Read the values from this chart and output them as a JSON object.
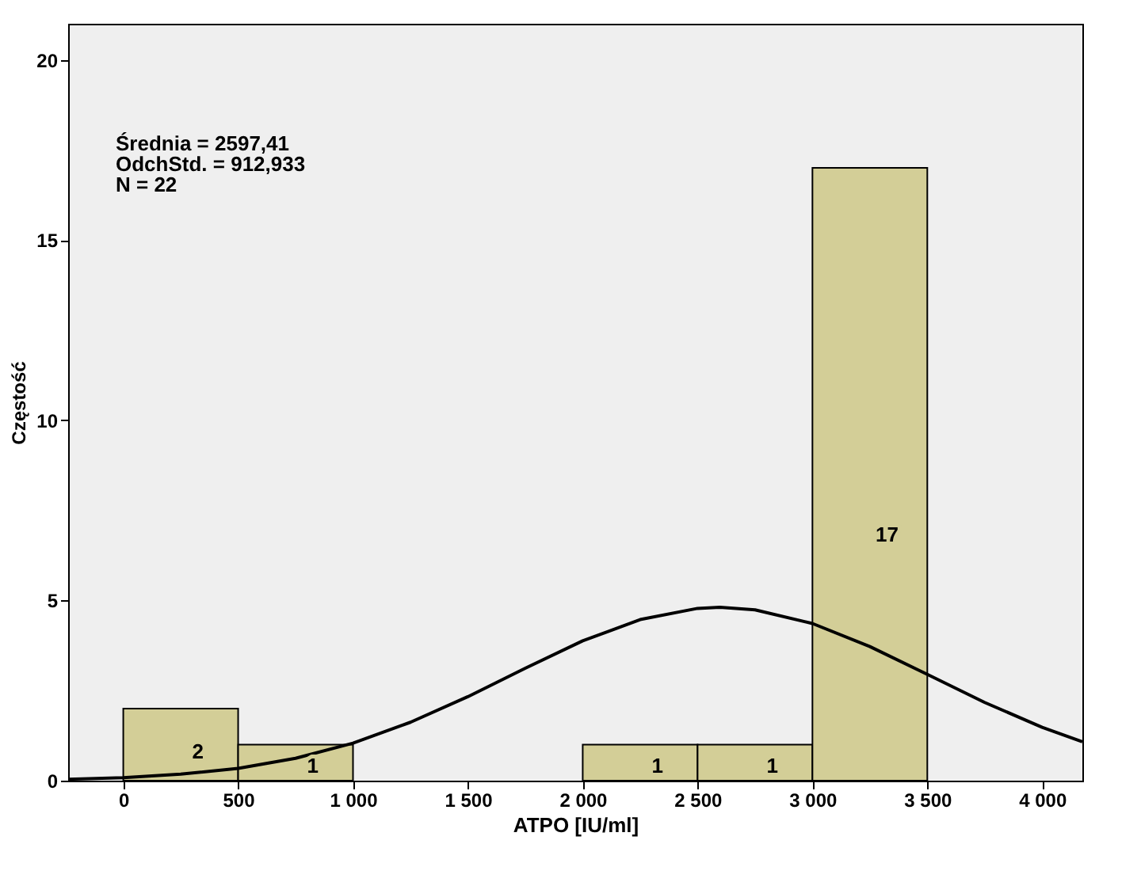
{
  "chart_data": {
    "type": "histogram",
    "xlabel": "ATPO [IU/ml]",
    "ylabel": "Częstość",
    "annotations": [
      "Średnia = 2597,41",
      "OdchStd. = 912,933",
      "N = 22"
    ],
    "series": [
      {
        "type": "histogram",
        "bins": [
          0,
          500,
          1000,
          1500,
          2000,
          2500,
          3000,
          3500
        ],
        "values": [
          2,
          1,
          0,
          0,
          1,
          1,
          17
        ],
        "color": "#d3ce97",
        "value_labels": [
          "2",
          "1",
          null,
          null,
          "1",
          "1",
          "17"
        ]
      },
      {
        "type": "line",
        "color": "#000000",
        "x": [
          -240,
          0,
          250,
          500,
          750,
          1000,
          1250,
          1500,
          1750,
          2000,
          2250,
          2500,
          2597,
          2750,
          3000,
          3250,
          3500,
          3750,
          4000,
          4175
        ],
        "values": [
          0.04,
          0.08,
          0.18,
          0.34,
          0.62,
          1.04,
          1.62,
          2.33,
          3.12,
          3.88,
          4.47,
          4.78,
          4.81,
          4.74,
          4.36,
          3.72,
          2.95,
          2.17,
          1.48,
          1.08
        ]
      }
    ],
    "xlim": [
      -240,
      4175
    ],
    "xticks": [
      0,
      500,
      {
        "value": 1000,
        "label": "1 000"
      },
      {
        "value": 1500,
        "label": "1 500"
      },
      {
        "value": 2000,
        "label": "2 000"
      },
      {
        "value": 2500,
        "label": "2 500"
      },
      {
        "value": 3000,
        "label": "3 000"
      },
      {
        "value": 3500,
        "label": "3 500"
      },
      {
        "value": 4000,
        "label": "4 000"
      }
    ],
    "ylim": [
      0,
      21
    ],
    "yticks": [
      0,
      5,
      10,
      15,
      20
    ],
    "grid": false
  }
}
